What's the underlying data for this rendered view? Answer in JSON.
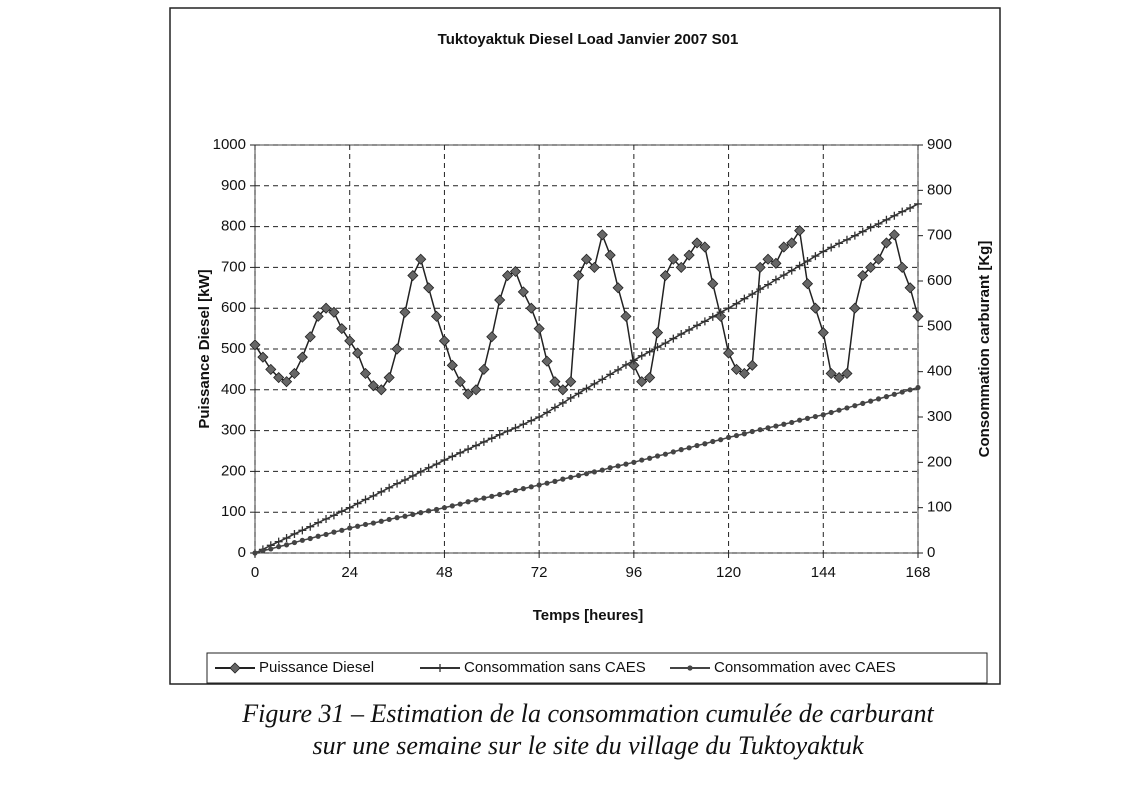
{
  "chart_data": {
    "type": "line",
    "title": "Tuktoyaktuk Diesel Load Janvier 2007 S01",
    "xlabel": "Temps [heures]",
    "ylabel": "Puissance Diesel [kW]",
    "y2label": "Consommation carburant [Kg]",
    "caption": [
      "Figure 31 – Estimation de la consommation cumulée de carburant",
      "sur une semaine sur le site du village du Tuktoyaktuk"
    ],
    "xlim": [
      0,
      168
    ],
    "xticks": [
      0,
      24,
      48,
      72,
      96,
      120,
      144,
      168
    ],
    "ylim": [
      0,
      1000
    ],
    "yticks": [
      0,
      100,
      200,
      300,
      400,
      500,
      600,
      700,
      800,
      900,
      1000
    ],
    "y2lim": [
      0,
      900
    ],
    "y2ticks": [
      0,
      100,
      200,
      300,
      400,
      500,
      600,
      700,
      800,
      900
    ],
    "grid": true,
    "legend": "bottom",
    "x": [
      0,
      2,
      4,
      6,
      8,
      10,
      12,
      14,
      16,
      18,
      20,
      22,
      24,
      26,
      28,
      30,
      32,
      34,
      36,
      38,
      40,
      42,
      44,
      46,
      48,
      50,
      52,
      54,
      56,
      58,
      60,
      62,
      64,
      66,
      68,
      70,
      72,
      74,
      76,
      78,
      80,
      82,
      84,
      86,
      88,
      90,
      92,
      94,
      96,
      98,
      100,
      102,
      104,
      106,
      108,
      110,
      112,
      114,
      116,
      118,
      120,
      122,
      124,
      126,
      128,
      130,
      132,
      134,
      136,
      138,
      140,
      142,
      144,
      146,
      148,
      150,
      152,
      154,
      156,
      158,
      160,
      162,
      164,
      166,
      168
    ],
    "series": [
      {
        "name": "Puissance Diesel",
        "color": "#222222",
        "marker": "diamond",
        "axis": "y",
        "values": [
          510,
          480,
          450,
          430,
          420,
          440,
          480,
          530,
          580,
          600,
          590,
          550,
          520,
          490,
          440,
          410,
          400,
          430,
          500,
          590,
          680,
          720,
          650,
          580,
          520,
          460,
          420,
          390,
          400,
          450,
          530,
          620,
          680,
          690,
          640,
          600,
          550,
          470,
          420,
          400,
          420,
          680,
          720,
          700,
          780,
          730,
          650,
          580,
          460,
          420,
          430,
          540,
          680,
          720,
          700,
          730,
          760,
          750,
          660,
          580,
          490,
          450,
          440,
          460,
          700,
          720,
          710,
          750,
          760,
          790,
          660,
          600,
          540,
          440,
          430,
          440,
          600,
          680,
          700,
          720,
          760,
          780,
          700,
          650,
          580
        ]
      },
      {
        "name": "Consommation sans CAES",
        "color": "#333333",
        "marker": "plus",
        "axis": "y2",
        "values": [
          0,
          8,
          17,
          25,
          33,
          42,
          50,
          58,
          67,
          75,
          83,
          92,
          100,
          109,
          118,
          126,
          135,
          144,
          153,
          161,
          170,
          179,
          188,
          196,
          205,
          213,
          221,
          229,
          237,
          245,
          253,
          261,
          269,
          276,
          284,
          292,
          300,
          310,
          321,
          331,
          342,
          352,
          363,
          373,
          383,
          394,
          404,
          415,
          425,
          435,
          444,
          454,
          463,
          473,
          483,
          492,
          502,
          511,
          521,
          531,
          540,
          550,
          561,
          571,
          582,
          592,
          603,
          613,
          623,
          634,
          644,
          655,
          665,
          674,
          683,
          691,
          700,
          709,
          718,
          726,
          735,
          744,
          753,
          761,
          770
        ]
      },
      {
        "name": "Consommation avec CAES",
        "color": "#444444",
        "marker": "dot",
        "axis": "y2",
        "values": [
          0,
          5,
          9,
          14,
          18,
          23,
          28,
          32,
          37,
          41,
          46,
          50,
          55,
          59,
          63,
          66,
          70,
          74,
          78,
          81,
          85,
          89,
          93,
          96,
          100,
          104,
          108,
          113,
          117,
          121,
          125,
          129,
          133,
          138,
          142,
          146,
          150,
          154,
          158,
          163,
          167,
          171,
          175,
          179,
          183,
          188,
          192,
          196,
          200,
          205,
          209,
          214,
          218,
          223,
          228,
          232,
          237,
          241,
          246,
          250,
          255,
          259,
          263,
          268,
          272,
          276,
          280,
          284,
          288,
          293,
          297,
          301,
          305,
          310,
          315,
          320,
          325,
          330,
          335,
          340,
          345,
          350,
          355,
          360,
          365
        ]
      }
    ]
  }
}
